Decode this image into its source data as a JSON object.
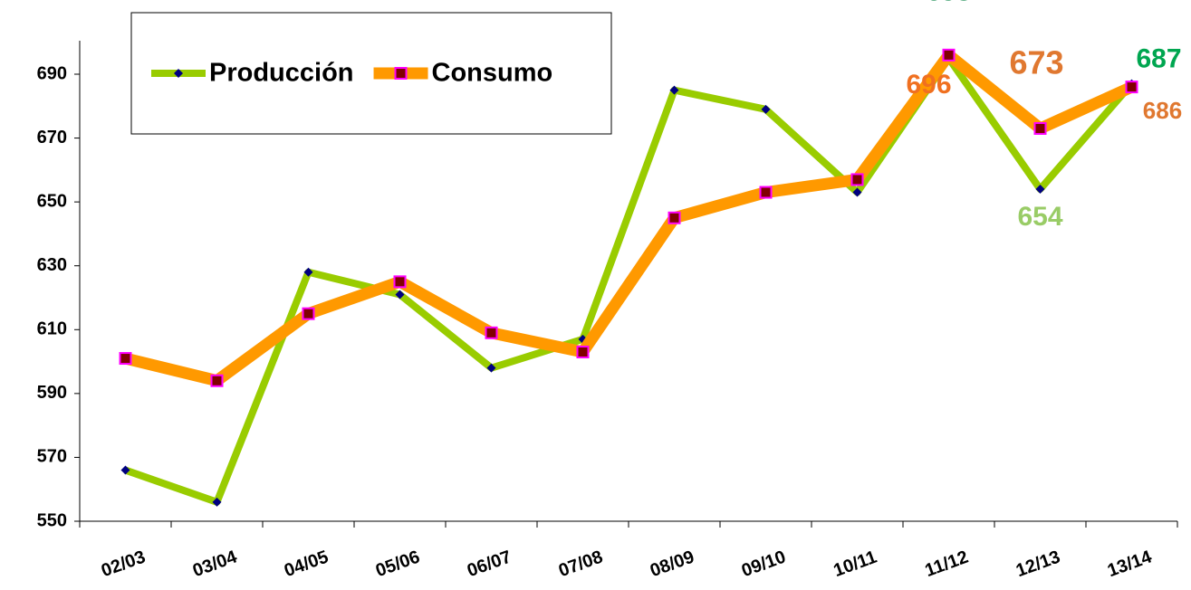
{
  "chart_data": {
    "type": "line",
    "categories": [
      "02/03",
      "03/04",
      "04/05",
      "05/06",
      "06/07",
      "07/08",
      "08/09",
      "09/10",
      "10/11",
      "11/12",
      "12/13",
      "13/14"
    ],
    "series": [
      {
        "name": "Producción",
        "color": "#99cc00",
        "marker": "diamond",
        "marker_color": "#000080",
        "values": [
          566,
          556,
          628,
          621,
          598,
          607,
          685,
          679,
          653,
          695,
          654,
          687
        ],
        "label_indices": [
          9,
          10,
          11
        ],
        "label_colors": [
          "#339966",
          "#99cc66",
          "#00a650"
        ]
      },
      {
        "name": "Consumo",
        "color": "#ff9900",
        "marker": "square",
        "marker_color": "#800000",
        "values": [
          601,
          594,
          615,
          625,
          609,
          603,
          645,
          653,
          657,
          696,
          673,
          686
        ],
        "label_indices": [
          9,
          10,
          11
        ],
        "label_colors": [
          "#f07020",
          "#e07830",
          "#e07830"
        ]
      }
    ],
    "ylim": [
      550,
      690
    ],
    "yticks": [
      550,
      570,
      590,
      610,
      630,
      650,
      670,
      690
    ],
    "grid": false,
    "legend": "top-left"
  }
}
